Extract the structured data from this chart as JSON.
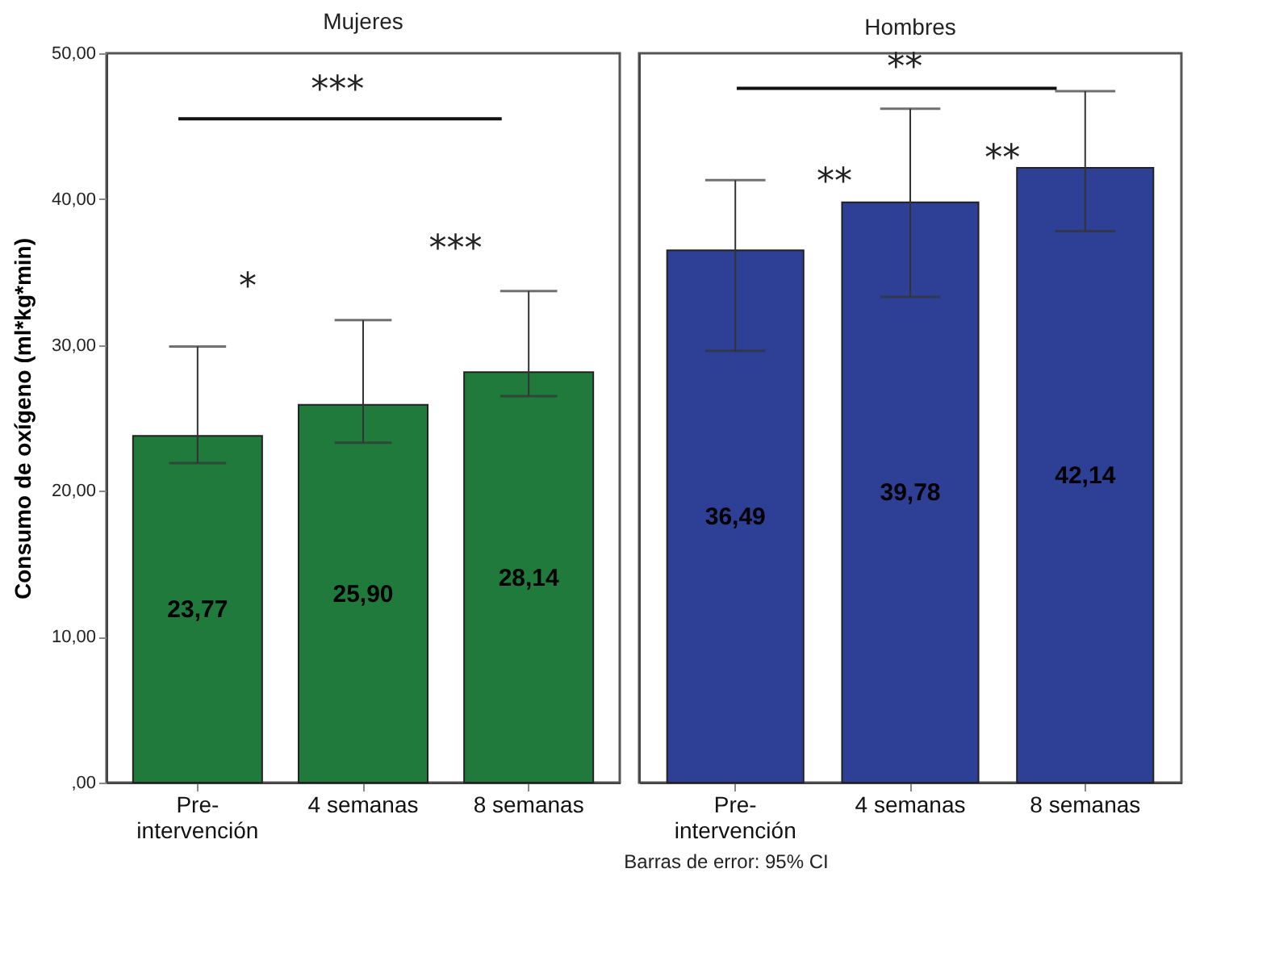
{
  "chart_data": [
    {
      "type": "bar",
      "title": "Mujeres",
      "ylabel": "Consumo de oxígeno (ml*kg*min)",
      "categories": [
        "Pre-intervención",
        "4 semanas",
        "8 semanas"
      ],
      "values": [
        23.77,
        25.9,
        28.14
      ],
      "color": "#1f7a3c",
      "errors": [
        [
          21.9,
          29.9
        ],
        [
          23.3,
          31.7
        ],
        [
          26.5,
          33.7
        ]
      ],
      "value_labels": [
        "23,77",
        "25,90",
        "28,14"
      ],
      "ylim": [
        0,
        50
      ],
      "yticks": [
        {
          "value": 0,
          "label": ",00"
        },
        {
          "value": 10,
          "label": "10,00"
        },
        {
          "value": 20,
          "label": "20,00"
        },
        {
          "value": 30,
          "label": "30,00"
        },
        {
          "value": 40,
          "label": "40,00"
        },
        {
          "value": 50,
          "label": "50,00"
        }
      ],
      "annotations": [
        "***",
        "*",
        "***",
        "Barras de error: 95% CI"
      ]
    },
    {
      "type": "bar",
      "title": "Hombres",
      "categories": [
        "Pre-intervención",
        "4 semanas",
        "8 semanas"
      ],
      "values": [
        36.49,
        39.78,
        42.14
      ],
      "color": "#2e3f96",
      "errors": [
        [
          29.6,
          41.3
        ],
        [
          33.3,
          46.2
        ],
        [
          37.8,
          47.4
        ]
      ],
      "value_labels": [
        "36,49",
        "39,78",
        "42,14"
      ],
      "ylim": [
        0,
        50
      ],
      "tick_labels": "x",
      "annotations": [
        "**",
        "**",
        "**"
      ]
    }
  ]
}
